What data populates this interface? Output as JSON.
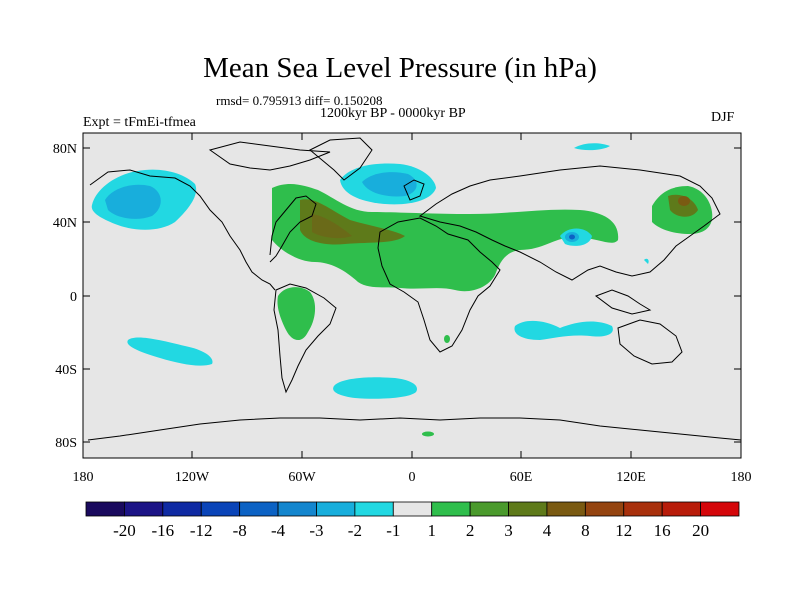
{
  "title": "Mean Sea Level Pressure (in hPa)",
  "stats": "rmsd= 0.795913 diff= 0.150208",
  "period": "1200kyr BP - 0000kyr BP",
  "experiment": "Expt = tFmEi-tfmea",
  "season": "DJF",
  "lat_ticks": [
    "80N",
    "40N",
    "0",
    "40S",
    "80S"
  ],
  "lon_ticks": [
    "180",
    "120W",
    "60W",
    "0",
    "60E",
    "120E",
    "180"
  ],
  "colorbar": {
    "labels": [
      "-20",
      "-16",
      "-12",
      "-8",
      "-4",
      "-3",
      "-2",
      "-1",
      "1",
      "2",
      "3",
      "4",
      "8",
      "12",
      "16",
      "20"
    ],
    "colors": [
      "#1a0a5e",
      "#1c1486",
      "#0f2aa3",
      "#0a44b8",
      "#0c62c4",
      "#1486ce",
      "#18aedc",
      "#22d8e2",
      "#e6e6e6",
      "#2fbe4c",
      "#4a9a2c",
      "#5e7a1a",
      "#7a5a12",
      "#944410",
      "#a8300c",
      "#b81c0a",
      "#d4060a"
    ]
  },
  "colors": {
    "background": "#e6e6e6",
    "coastline": "#000000"
  }
}
